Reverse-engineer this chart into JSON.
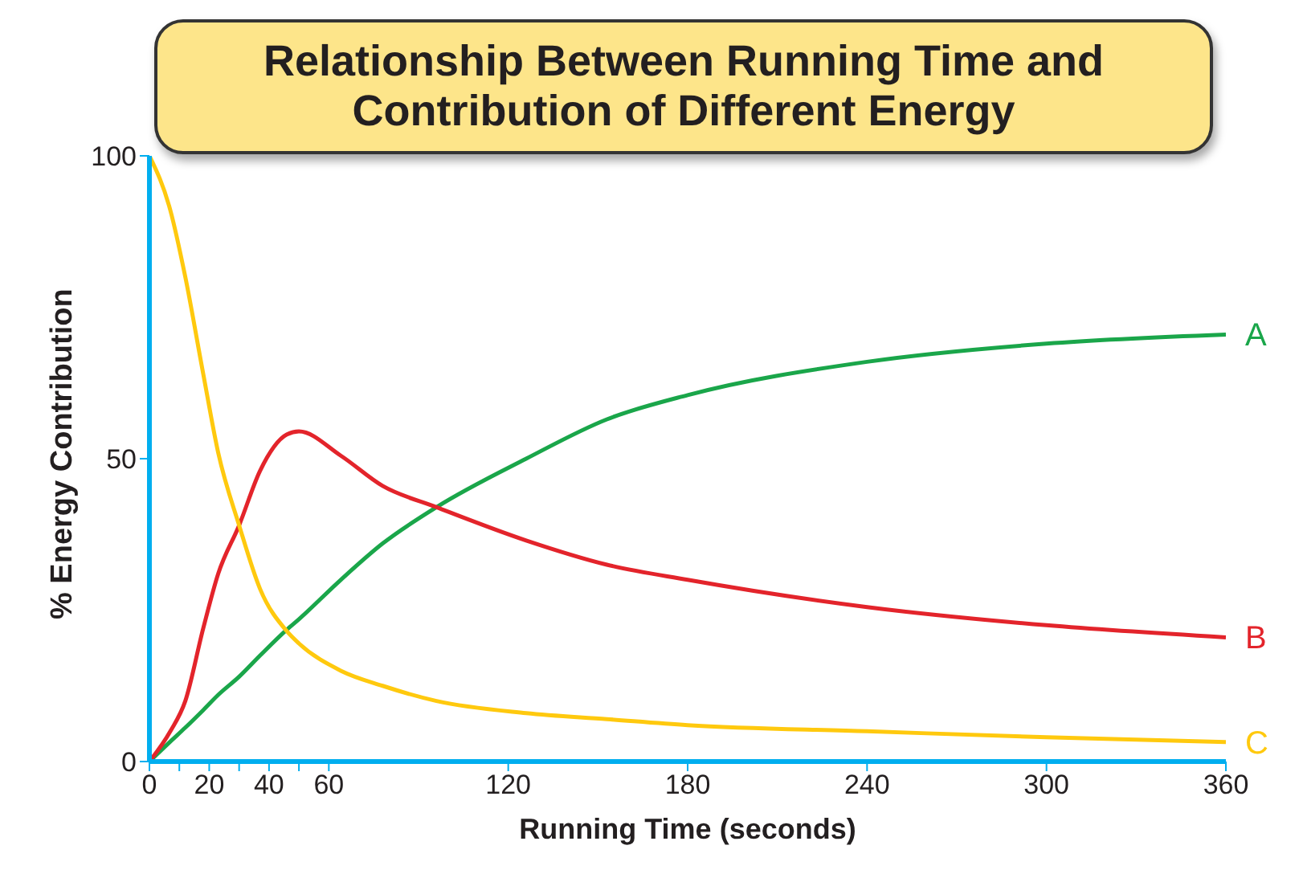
{
  "chart_data": {
    "type": "line",
    "title": "Relationship Between Running Time and Contribution of Different Energy",
    "xlabel": "Running Time (seconds)",
    "ylabel": "% Energy Contribution",
    "x": [
      0,
      7,
      12,
      18,
      23,
      30,
      37,
      46,
      50,
      64,
      78,
      96,
      126,
      153,
      180,
      240,
      300,
      360
    ],
    "series": [
      {
        "name": "A",
        "color": "#1aa64a",
        "values": [
          0,
          3.3,
          5.6,
          8.5,
          11,
          14,
          17.5,
          21.8,
          23.5,
          30,
          36,
          42,
          50,
          56.5,
          60.5,
          66,
          69,
          70.5
        ]
      },
      {
        "name": "B",
        "color": "#e3242b",
        "values": [
          0,
          5,
          10,
          22,
          31,
          39,
          48,
          54,
          54.5,
          50.5,
          45.5,
          42,
          36.5,
          32.5,
          30,
          25.5,
          22.5,
          20.5
        ]
      },
      {
        "name": "C",
        "color": "#ffc90e",
        "values": [
          100,
          91,
          80,
          64,
          51,
          39,
          28.5,
          21.5,
          19.5,
          15,
          12.5,
          10,
          8,
          7,
          6,
          5,
          4,
          3.2
        ]
      }
    ],
    "xlim": [
      0,
      360
    ],
    "ylim": [
      0,
      100
    ],
    "xticks": [
      0,
      {
        "value": 10,
        "label": null
      },
      20,
      {
        "value": 30,
        "label": null
      },
      40,
      {
        "value": 50,
        "label": null
      },
      60,
      120,
      180,
      240,
      300,
      360
    ],
    "yticks": [
      0,
      50,
      100
    ],
    "grid": false,
    "legend": false,
    "marker": "none",
    "line_style": "solid"
  }
}
